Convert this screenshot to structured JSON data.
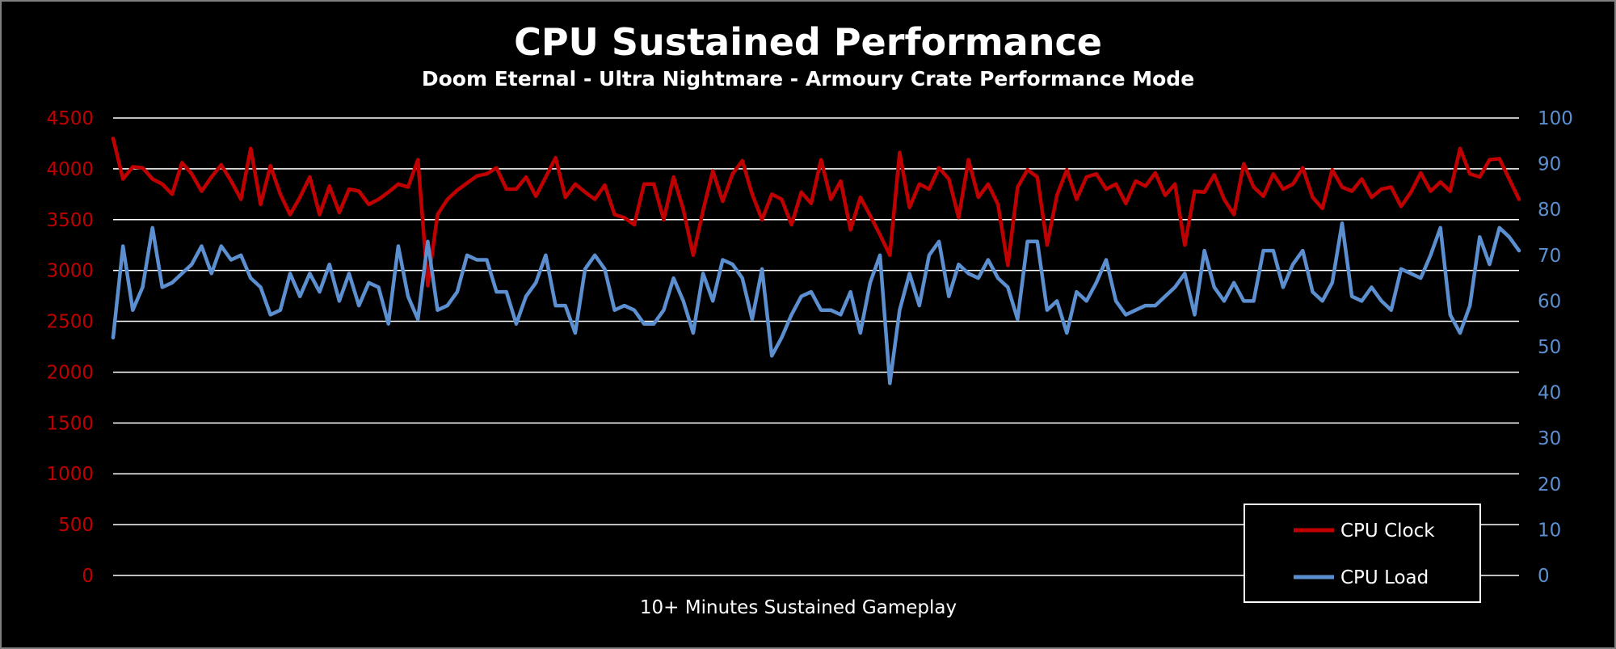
{
  "chart_data": {
    "type": "line",
    "title": "CPU Sustained Performance",
    "subtitle": "Doom Eternal - Ultra Nightmare - Armoury Crate Performance Mode",
    "xlabel": "10+ Minutes Sustained Gameplay",
    "ylabel": "",
    "y2label": "",
    "ylim": [
      0,
      4500
    ],
    "y2lim": [
      0,
      100
    ],
    "yticks": [
      "0",
      "500",
      "1000",
      "1500",
      "2000",
      "2500",
      "3000",
      "3500",
      "4000",
      "4500"
    ],
    "y2ticks": [
      "0",
      "10",
      "20",
      "30",
      "40",
      "50",
      "60",
      "70",
      "80",
      "90",
      "100"
    ],
    "grid": true,
    "legend_position": "bottom-right",
    "series": [
      {
        "name": "CPU Clock",
        "axis": "left",
        "color": "#c00000",
        "values": [
          4300,
          3900,
          4020,
          4010,
          3900,
          3850,
          3750,
          4060,
          3950,
          3780,
          3920,
          4040,
          3880,
          3700,
          4200,
          3650,
          4030,
          3750,
          3550,
          3720,
          3920,
          3550,
          3830,
          3570,
          3800,
          3780,
          3650,
          3700,
          3770,
          3850,
          3820,
          4090,
          2850,
          3550,
          3700,
          3790,
          3860,
          3930,
          3950,
          4010,
          3800,
          3800,
          3920,
          3730,
          3920,
          4110,
          3720,
          3850,
          3770,
          3700,
          3840,
          3550,
          3520,
          3450,
          3850,
          3850,
          3500,
          3920,
          3600,
          3150,
          3590,
          3980,
          3680,
          3950,
          4080,
          3750,
          3500,
          3750,
          3700,
          3450,
          3770,
          3660,
          4090,
          3700,
          3880,
          3400,
          3720,
          3540,
          3350,
          3150,
          4160,
          3620,
          3850,
          3800,
          4010,
          3900,
          3520,
          4090,
          3720,
          3850,
          3650,
          3050,
          3820,
          3990,
          3920,
          3250,
          3740,
          3990,
          3700,
          3920,
          3950,
          3800,
          3850,
          3660,
          3880,
          3830,
          3960,
          3740,
          3850,
          3250,
          3780,
          3770,
          3940,
          3700,
          3550,
          4050,
          3820,
          3730,
          3950,
          3800,
          3850,
          4010,
          3720,
          3610,
          3990,
          3820,
          3780,
          3900,
          3720,
          3800,
          3820,
          3630,
          3770,
          3960,
          3780,
          3870,
          3780,
          4200,
          3950,
          3920,
          4090,
          4100,
          3900,
          3700
        ]
      },
      {
        "name": "CPU Load",
        "axis": "right",
        "color": "#5b8fd0",
        "values": [
          52,
          72,
          58,
          63,
          76,
          63,
          64,
          66,
          68,
          72,
          66,
          72,
          69,
          70,
          65,
          63,
          57,
          58,
          66,
          61,
          66,
          62,
          68,
          60,
          66,
          59,
          64,
          63,
          55,
          72,
          61,
          56,
          73,
          58,
          59,
          62,
          70,
          69,
          69,
          62,
          62,
          55,
          61,
          64,
          70,
          59,
          59,
          53,
          67,
          70,
          67,
          58,
          59,
          58,
          55,
          55,
          58,
          65,
          60,
          53,
          66,
          60,
          69,
          68,
          65,
          56,
          67,
          48,
          52,
          57,
          61,
          62,
          58,
          58,
          57,
          62,
          53,
          64,
          70,
          42,
          58,
          66,
          59,
          70,
          73,
          61,
          68,
          66,
          65,
          69,
          65,
          63,
          56,
          73,
          73,
          58,
          60,
          53,
          62,
          60,
          64,
          69,
          60,
          57,
          58,
          59,
          59,
          61,
          63,
          66,
          57,
          71,
          63,
          60,
          64,
          60,
          60,
          71,
          71,
          63,
          68,
          71,
          62,
          60,
          64,
          77,
          61,
          60,
          63,
          60,
          58,
          67,
          66,
          65,
          70,
          76,
          57,
          53,
          59,
          74,
          68,
          76,
          74,
          71
        ]
      }
    ]
  }
}
